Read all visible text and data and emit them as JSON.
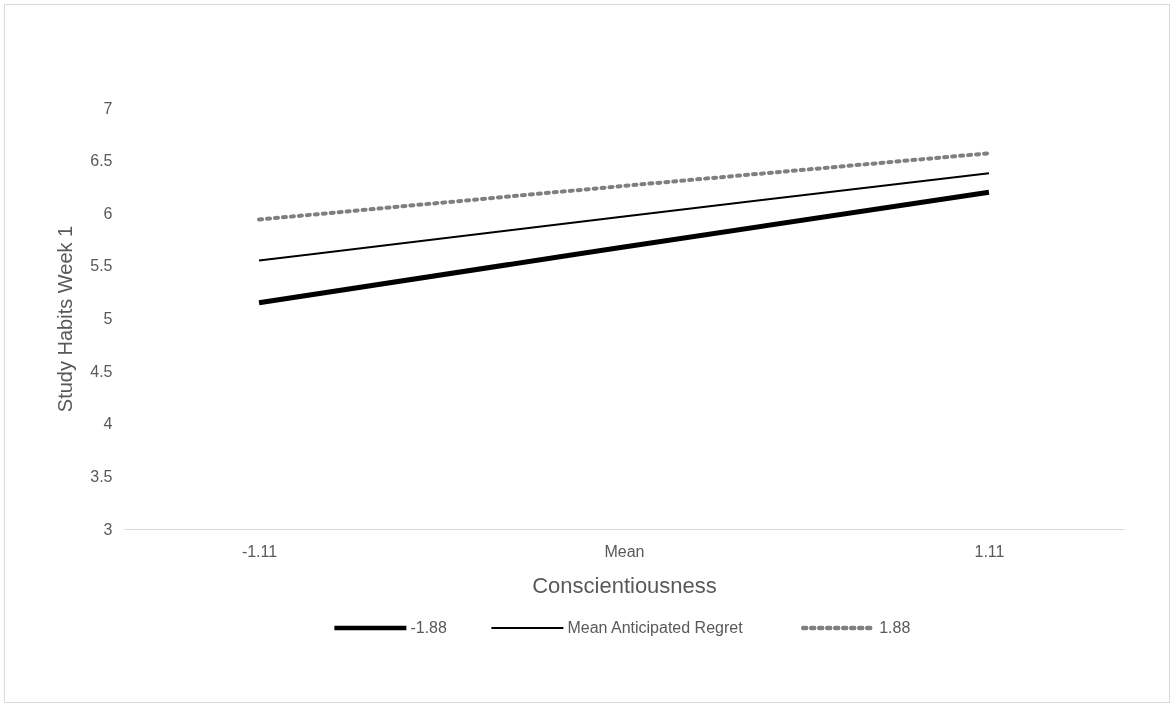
{
  "chart_data": {
    "type": "line",
    "xlabel": "Conscientiousness",
    "ylabel": "Study Habits Week 1",
    "categories": [
      "-1.11",
      "Mean",
      "1.11"
    ],
    "series": [
      {
        "name": "-1.88",
        "color": "#000000",
        "line_style": "solid",
        "values": [
          5.15,
          5.68,
          6.2
        ]
      },
      {
        "name": "Mean Anticipated Regret",
        "color": "#000000",
        "line_style": "solid",
        "values": [
          5.55,
          5.97,
          6.38
        ]
      },
      {
        "name": "1.88",
        "color": "#7f7f7f",
        "line_style": "dotted",
        "values": [
          5.94,
          6.26,
          6.57
        ]
      }
    ],
    "ylim": [
      3,
      7
    ],
    "yticks": [
      3,
      3.5,
      4,
      4.5,
      5,
      5.5,
      6,
      6.5,
      7
    ],
    "grid": false,
    "legend": "bottom",
    "marker": "none"
  }
}
